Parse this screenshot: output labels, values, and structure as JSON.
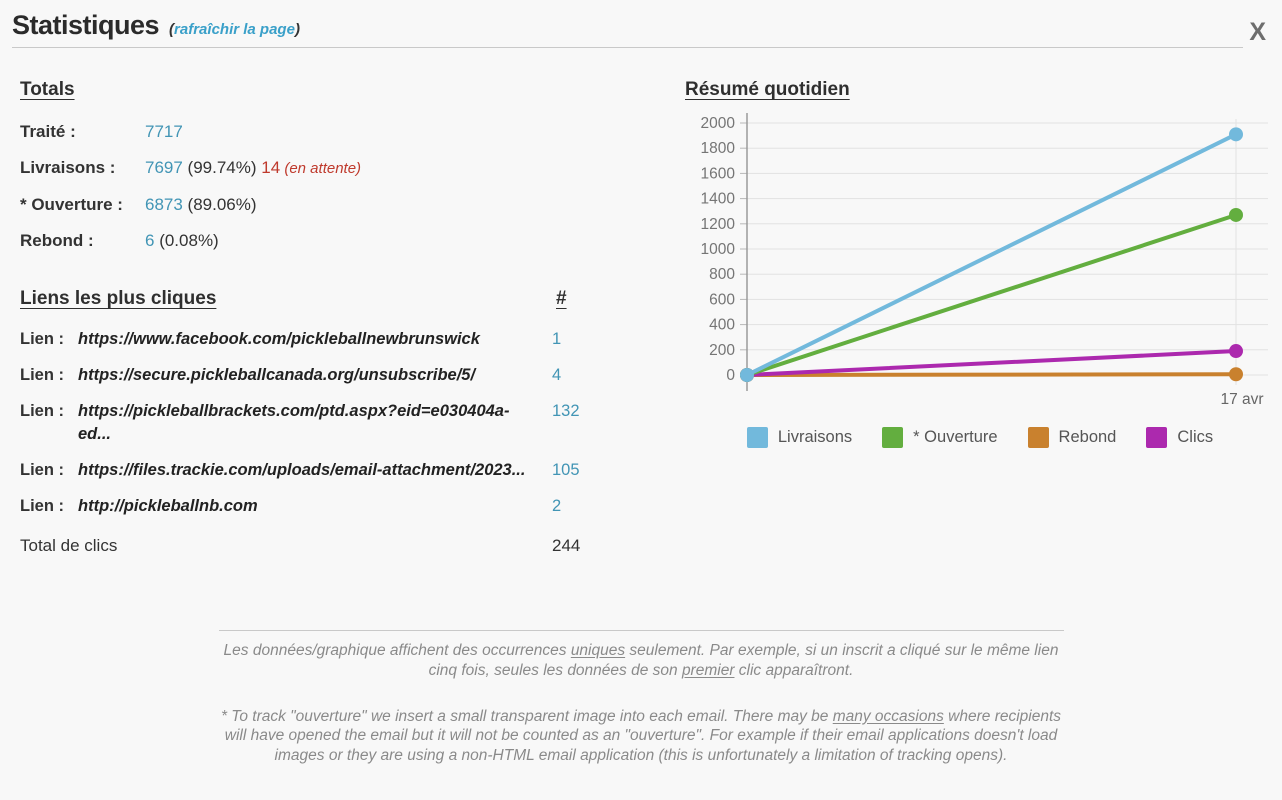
{
  "page": {
    "title": "Statistiques",
    "refresh_open": "(",
    "refresh_label": "rafraîchir la page",
    "refresh_close": ")",
    "close_label": "X"
  },
  "totals": {
    "heading": "Totals",
    "rows": [
      {
        "label": "Traité :",
        "value": "7717",
        "percent": "",
        "pending_value": "",
        "pending_note": ""
      },
      {
        "label": "Livraisons :",
        "value": "7697",
        "percent": "(99.74%)",
        "pending_value": "14",
        "pending_note": "(en attente)"
      },
      {
        "label": "* Ouverture :",
        "value": "6873",
        "percent": "(89.06%)",
        "pending_value": "",
        "pending_note": ""
      },
      {
        "label": "Rebond :",
        "value": "6",
        "percent": "(0.08%)",
        "pending_value": "",
        "pending_note": ""
      }
    ]
  },
  "links": {
    "heading": "Liens les plus cliques",
    "count_header": "#",
    "row_label": "Lien :",
    "rows": [
      {
        "url": "https://www.facebook.com/pickleballnewbrunswick",
        "count": "1"
      },
      {
        "url": "https://secure.pickleballcanada.org/unsubscribe/5/",
        "count": "4"
      },
      {
        "url": "https://pickleballbrackets.com/ptd.aspx?eid=e030404a-ed...",
        "count": "132"
      },
      {
        "url": "https://files.trackie.com/uploads/email-attachment/2023...",
        "count": "105"
      },
      {
        "url": "http://pickleballnb.com",
        "count": "2"
      }
    ],
    "total_label": "Total de clics",
    "total_value": "244"
  },
  "chart_data": {
    "type": "line",
    "title": "Résumé quotidien",
    "x": [
      "",
      "17 avr"
    ],
    "series": [
      {
        "name": "Livraisons",
        "color": "#72b9dc",
        "values": [
          0,
          1910
        ]
      },
      {
        "name": "* Ouverture",
        "color": "#63ae3f",
        "values": [
          0,
          1270
        ]
      },
      {
        "name": "Rebond",
        "color": "#c9812e",
        "values": [
          0,
          6
        ]
      },
      {
        "name": "Clics",
        "color": "#ac29ae",
        "values": [
          0,
          190
        ]
      }
    ],
    "ylim": [
      0,
      2000
    ],
    "ytick_step": 200,
    "grid": true,
    "legend_position": "bottom",
    "xlabel": "",
    "ylabel": ""
  },
  "notes": {
    "note1": [
      {
        "t": "Les données/graphique affichent des occurrences "
      },
      {
        "t": "uniques",
        "u": true
      },
      {
        "t": " seulement. Par exemple, si un inscrit a cliqué sur le même lien cinq fois, seules les données de son "
      },
      {
        "t": "premier",
        "u": true
      },
      {
        "t": " clic apparaîtront."
      }
    ],
    "note2": [
      {
        "t": "* To track \"ouverture\" we insert a small transparent image into each email. There may be "
      },
      {
        "t": "many occasions",
        "u": true
      },
      {
        "t": " where recipients will have opened the email but it will not be counted as an \"ouverture\". For example if their email applications doesn't load images or they are using a non-HTML email application (this is unfortunately a limitation of tracking opens)."
      }
    ]
  }
}
